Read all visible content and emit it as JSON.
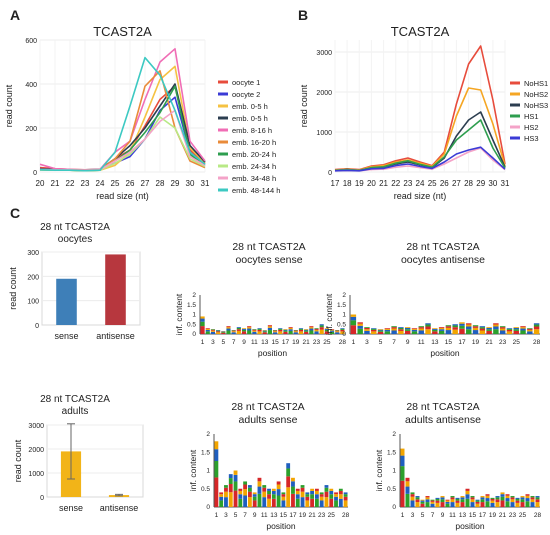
{
  "panels": {
    "A": {
      "letter": "A"
    },
    "B": {
      "letter": "B"
    },
    "C": {
      "letter": "C"
    }
  },
  "chart_data": [
    {
      "id": "A",
      "type": "line",
      "title": "TCAST2A",
      "xlabel": "read size   (nt)",
      "ylabel": "read count",
      "x": [
        20,
        21,
        22,
        23,
        24,
        25,
        26,
        27,
        28,
        29,
        30,
        31
      ],
      "xticks": [
        "20",
        "21",
        "22",
        "23",
        "24",
        "25",
        "26",
        "27",
        "28",
        "29",
        "30",
        "31"
      ],
      "ylim": [
        0,
        600
      ],
      "yticks": [
        0,
        200,
        400,
        600
      ],
      "legend_position": "right",
      "series": [
        {
          "name": "oocyte 1",
          "color": "#e74c3c",
          "values": [
            20,
            15,
            12,
            10,
            12,
            60,
            100,
            210,
            330,
            390,
            100,
            40
          ]
        },
        {
          "name": "oocyte 2",
          "color": "#3b3bd6",
          "values": [
            15,
            12,
            10,
            8,
            10,
            40,
            70,
            150,
            280,
            340,
            90,
            35
          ]
        },
        {
          "name": "emb. 0-5 h",
          "color": "#f5c242",
          "values": [
            10,
            8,
            8,
            6,
            8,
            30,
            90,
            250,
            420,
            480,
            110,
            40
          ]
        },
        {
          "name": "emb. 0-5 h",
          "color": "#2c3e50",
          "values": [
            15,
            12,
            10,
            10,
            12,
            60,
            120,
            200,
            300,
            400,
            120,
            45
          ]
        },
        {
          "name": "emb. 8-16 h",
          "color": "#f06db5",
          "values": [
            35,
            15,
            12,
            10,
            12,
            90,
            140,
            330,
            500,
            560,
            140,
            50
          ]
        },
        {
          "name": "emb. 16-20 h",
          "color": "#e98b3a",
          "values": [
            12,
            10,
            10,
            8,
            10,
            60,
            140,
            390,
            460,
            200,
            50,
            20
          ]
        },
        {
          "name": "emb. 20-24 h",
          "color": "#2e9e4f",
          "values": [
            10,
            8,
            8,
            6,
            8,
            50,
            100,
            180,
            270,
            390,
            80,
            30
          ]
        },
        {
          "name": "emb. 24-34 h",
          "color": "#b8e986",
          "values": [
            10,
            8,
            8,
            6,
            8,
            40,
            80,
            150,
            250,
            200,
            60,
            25
          ]
        },
        {
          "name": "emb. 34-48 h",
          "color": "#f4a3c8",
          "values": [
            12,
            10,
            10,
            8,
            10,
            50,
            90,
            150,
            230,
            280,
            70,
            30
          ]
        },
        {
          "name": "emb. 48-144 h",
          "color": "#3cc9c2",
          "values": [
            10,
            8,
            8,
            6,
            8,
            90,
            300,
            520,
            440,
            280,
            90,
            35
          ]
        }
      ]
    },
    {
      "id": "B",
      "type": "line",
      "title": "TCAST2A",
      "xlabel": "read size (nt)",
      "ylabel": "read count",
      "x": [
        17,
        18,
        19,
        20,
        21,
        22,
        23,
        24,
        25,
        26,
        27,
        28,
        29,
        30,
        31
      ],
      "xticks": [
        "17",
        "18",
        "19",
        "20",
        "21",
        "22",
        "23",
        "24",
        "25",
        "26",
        "27",
        "28",
        "29",
        "30",
        "31"
      ],
      "ylim": [
        0,
        3300
      ],
      "yticks": [
        0,
        1000,
        2000,
        3000
      ],
      "legend_position": "right",
      "series": [
        {
          "name": "NoHS1",
          "color": "#e74c3c",
          "values": [
            60,
            80,
            60,
            150,
            180,
            280,
            350,
            250,
            160,
            500,
            1700,
            2700,
            3150,
            1800,
            200
          ]
        },
        {
          "name": "NoHS2",
          "color": "#f5a623",
          "values": [
            50,
            70,
            50,
            130,
            160,
            250,
            300,
            220,
            140,
            450,
            1400,
            2100,
            2050,
            1200,
            150
          ]
        },
        {
          "name": "NoHS3",
          "color": "#2c3e50",
          "values": [
            40,
            60,
            40,
            100,
            120,
            200,
            250,
            180,
            110,
            350,
            900,
            1300,
            1500,
            800,
            120
          ]
        },
        {
          "name": "HS1",
          "color": "#2e9e4f",
          "values": [
            40,
            60,
            40,
            110,
            130,
            220,
            280,
            190,
            120,
            380,
            800,
            1050,
            1300,
            600,
            100
          ]
        },
        {
          "name": "HS2",
          "color": "#f4a3c8",
          "values": [
            30,
            40,
            30,
            60,
            70,
            120,
            150,
            110,
            70,
            200,
            350,
            500,
            600,
            300,
            60
          ]
        },
        {
          "name": "HS3",
          "color": "#3b3bd6",
          "values": [
            30,
            40,
            30,
            80,
            90,
            160,
            200,
            140,
            90,
            250,
            450,
            550,
            620,
            350,
            70
          ]
        }
      ]
    },
    {
      "id": "C1",
      "type": "bar",
      "title": "28 nt TCAST2A\noocytes",
      "ylabel": "read count",
      "categories": [
        "sense",
        "antisense"
      ],
      "values": [
        190,
        290
      ],
      "colors": [
        "#3e7fb8",
        "#b7373e"
      ],
      "ylim": [
        0,
        300
      ],
      "yticks": [
        0,
        100,
        200,
        300
      ]
    },
    {
      "id": "C4",
      "type": "bar",
      "title": "28 nt TCAST2A\nadults",
      "ylabel": "read count",
      "categories": [
        "sense",
        "antisense"
      ],
      "values": [
        1900,
        80
      ],
      "error": [
        1150,
        30
      ],
      "colors": [
        "#f2b418",
        "#f2b418"
      ],
      "ylim": [
        0,
        3000
      ],
      "yticks": [
        0,
        1000,
        2000,
        3000
      ]
    },
    {
      "id": "C2",
      "type": "bar",
      "subtype": "sequence-logo",
      "title": "28 nt TCAST2A\noocytes sense",
      "xlabel": "position",
      "ylabel": "inf. content",
      "positions": [
        1,
        2,
        3,
        4,
        5,
        6,
        7,
        8,
        9,
        10,
        11,
        12,
        13,
        14,
        15,
        16,
        17,
        18,
        19,
        20,
        21,
        22,
        23,
        24,
        25,
        26,
        27,
        28
      ],
      "xticks": [
        "1",
        "3",
        "5",
        "7",
        "9",
        "11",
        "13",
        "15",
        "17",
        "19",
        "21",
        "23",
        "25",
        "28"
      ],
      "ylim": [
        0,
        2.0
      ],
      "yticks": [
        0,
        0.5,
        1.0,
        1.5,
        2.0
      ],
      "values": [
        0.9,
        0.3,
        0.25,
        0.2,
        0.15,
        0.4,
        0.2,
        0.35,
        0.3,
        0.4,
        0.25,
        0.3,
        0.2,
        0.45,
        0.2,
        0.3,
        0.25,
        0.35,
        0.2,
        0.3,
        0.25,
        0.4,
        0.3,
        0.5,
        0.3,
        0.25,
        0.2,
        0.3
      ]
    },
    {
      "id": "C3",
      "type": "bar",
      "subtype": "sequence-logo",
      "title": "28 nt TCAST2A\noocytes antisense",
      "xlabel": "position",
      "ylabel": "inf. content",
      "positions": [
        1,
        2,
        3,
        4,
        5,
        6,
        7,
        8,
        9,
        10,
        11,
        12,
        13,
        14,
        15,
        16,
        17,
        18,
        19,
        20,
        21,
        22,
        23,
        24,
        25,
        26,
        27,
        28
      ],
      "xticks": [
        "1",
        "3",
        "5",
        "7",
        "9",
        "11",
        "13",
        "15",
        "17",
        "19",
        "21",
        "23",
        "25",
        "28"
      ],
      "ylim": [
        0,
        2.0
      ],
      "yticks": [
        0,
        0.5,
        1.0,
        1.5,
        2.0
      ],
      "values": [
        1.0,
        0.6,
        0.35,
        0.3,
        0.25,
        0.3,
        0.4,
        0.35,
        0.35,
        0.3,
        0.4,
        0.55,
        0.3,
        0.35,
        0.45,
        0.5,
        0.6,
        0.55,
        0.45,
        0.4,
        0.35,
        0.55,
        0.4,
        0.3,
        0.35,
        0.4,
        0.3,
        0.55
      ]
    },
    {
      "id": "C5",
      "type": "bar",
      "subtype": "sequence-logo",
      "title": "28 nt TCAST2A\nadults sense",
      "xlabel": "position",
      "ylabel": "inf. content",
      "positions": [
        1,
        2,
        3,
        4,
        5,
        6,
        7,
        8,
        9,
        10,
        11,
        12,
        13,
        14,
        15,
        16,
        17,
        18,
        19,
        20,
        21,
        22,
        23,
        24,
        25,
        26,
        27,
        28
      ],
      "xticks": [
        "1",
        "3",
        "5",
        "7",
        "9",
        "11",
        "13",
        "15",
        "17",
        "19",
        "21",
        "23",
        "25",
        "28"
      ],
      "ylim": [
        0,
        2.0
      ],
      "yticks": [
        0,
        0.5,
        1.0,
        1.5,
        2.0
      ],
      "values": [
        1.8,
        0.4,
        0.6,
        0.9,
        1.0,
        0.5,
        0.7,
        0.6,
        0.4,
        0.8,
        0.6,
        0.5,
        0.5,
        0.7,
        0.4,
        1.2,
        0.8,
        0.5,
        0.6,
        0.4,
        0.5,
        0.5,
        0.4,
        0.6,
        0.5,
        0.4,
        0.5,
        0.4
      ]
    },
    {
      "id": "C6",
      "type": "bar",
      "subtype": "sequence-logo",
      "title": "28 nt TCAST2A\nadults antisense",
      "xlabel": "position",
      "ylabel": "inf. content",
      "positions": [
        1,
        2,
        3,
        4,
        5,
        6,
        7,
        8,
        9,
        10,
        11,
        12,
        13,
        14,
        15,
        16,
        17,
        18,
        19,
        20,
        21,
        22,
        23,
        24,
        25,
        26,
        27,
        28
      ],
      "xticks": [
        "1",
        "3",
        "5",
        "7",
        "9",
        "11",
        "13",
        "15",
        "17",
        "19",
        "21",
        "23",
        "25",
        "28"
      ],
      "ylim": [
        0,
        2.0
      ],
      "yticks": [
        0,
        0.5,
        1.0,
        1.5,
        2.0
      ],
      "values": [
        1.6,
        0.8,
        0.4,
        0.3,
        0.2,
        0.3,
        0.2,
        0.25,
        0.3,
        0.2,
        0.3,
        0.25,
        0.3,
        0.5,
        0.3,
        0.2,
        0.3,
        0.35,
        0.25,
        0.3,
        0.4,
        0.35,
        0.3,
        0.25,
        0.3,
        0.35,
        0.3,
        0.3
      ]
    }
  ]
}
